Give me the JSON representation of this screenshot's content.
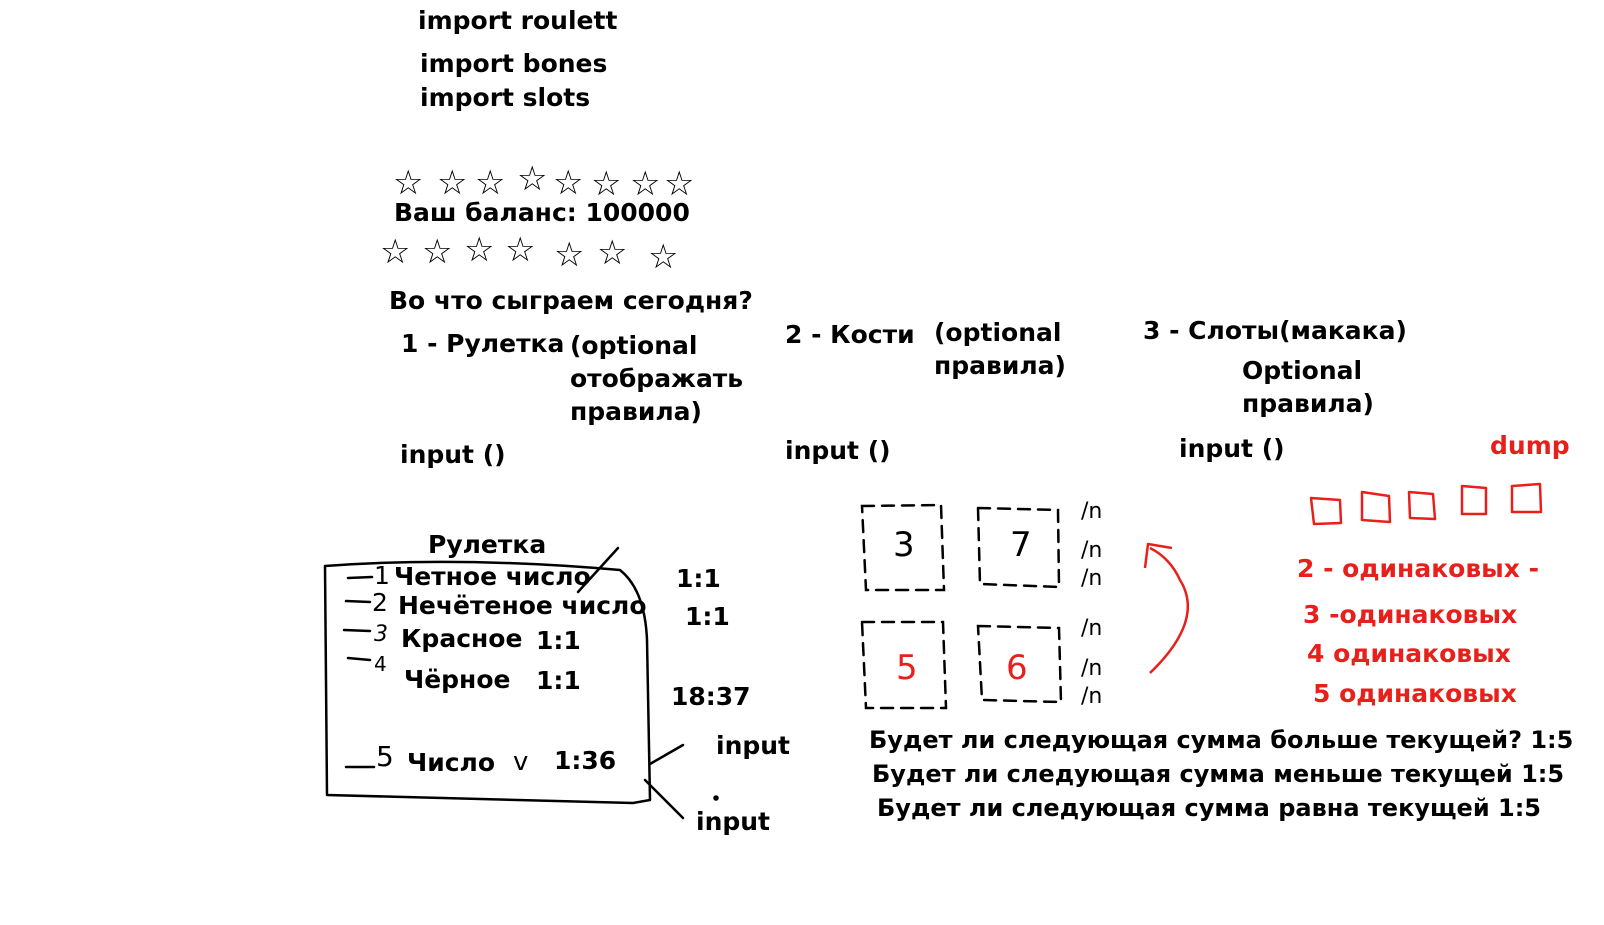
{
  "imports": [
    "import roulett",
    "import bones",
    "import slots"
  ],
  "balance_label": "Ваш баланс: 100000",
  "question": "Во что сыграем сегодня?",
  "menu": {
    "roulette": {
      "label": "1 - Рулетка",
      "note_lines": [
        "(optional",
        "отображать",
        "правила)"
      ],
      "input": "input ()"
    },
    "dice": {
      "label": "2 - Кости",
      "note_lines": [
        "(optional",
        "правила)"
      ],
      "input": "input ()"
    },
    "slots": {
      "label": "3 - Слоты(макака)",
      "note_lines": [
        "Optional",
        "правила)"
      ],
      "input": "input ()"
    }
  },
  "roulette_box": {
    "title": "Рулетка",
    "options": [
      {
        "num": "1",
        "label": "Четное число",
        "odds": "1:1"
      },
      {
        "num": "2",
        "label": "Нечётеное число",
        "odds": "1:1"
      },
      {
        "num": "3",
        "label": "Красное",
        "odds": "1:1"
      },
      {
        "num": "4",
        "label": "Чёрное",
        "odds": "1:1"
      },
      {
        "num": "5",
        "label": "Число",
        "odds": "1:36"
      }
    ],
    "side_odds": "18:37",
    "inputs": [
      "input",
      "input"
    ],
    "check_mark": "v"
  },
  "dice": {
    "faces": [
      "3",
      "7",
      "5",
      "6"
    ],
    "marks": [
      "/n",
      "/n",
      "/n",
      "/n",
      "/n",
      "/n"
    ],
    "questions": [
      "Будет ли следующая сумма больше текущей? 1:5",
      "Будет ли следующая сумма меньше текущей 1:5",
      "Будет ли следующая сумма равна текущей 1:5"
    ]
  },
  "slots": {
    "dump": "dump",
    "rules": [
      "2 - одинаковых -",
      "3 -одинаковых",
      "4 одинаковых",
      "5 одинаковых"
    ]
  },
  "colors": {
    "ink": "#000000",
    "accent": "#e8201c"
  }
}
